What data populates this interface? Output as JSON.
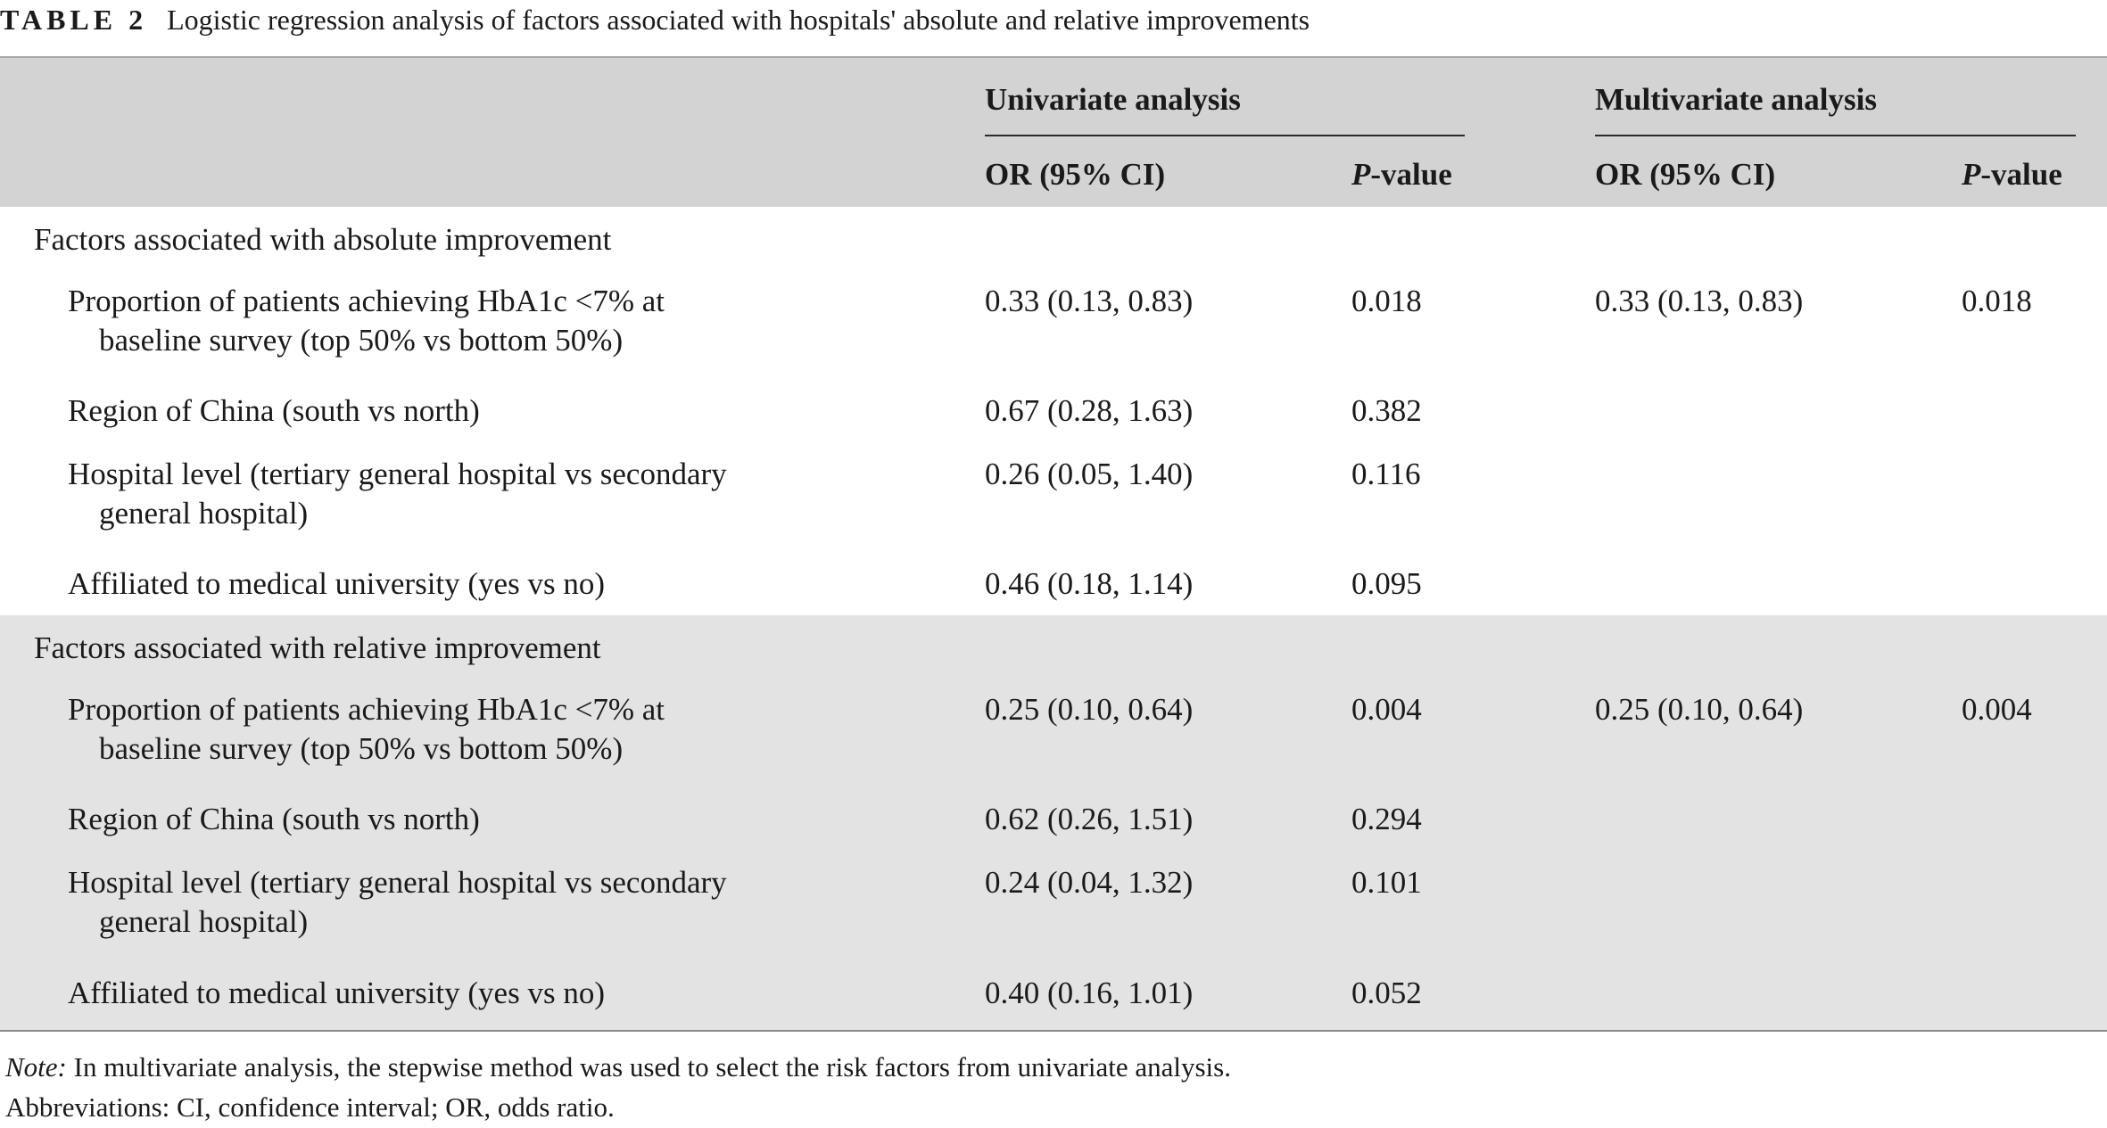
{
  "caption": {
    "label": "TABLE 2",
    "title": "Logistic regression analysis of factors associated with hospitals' absolute and relative improvements"
  },
  "headers": {
    "univariate": "Univariate analysis",
    "multivariate": "Multivariate analysis",
    "or_ci": "OR (95% CI)",
    "p_italic": "P",
    "p_suffix": "-value"
  },
  "sections": [
    {
      "title": "Factors associated with absolute improvement",
      "rows": [
        {
          "line1": "Proportion of patients achieving HbA1c <7% at",
          "line2": "baseline survey (top 50% vs bottom 50%)",
          "uni_or": "0.33 (0.13, 0.83)",
          "uni_p": "0.018",
          "multi_or": "0.33 (0.13, 0.83)",
          "multi_p": "0.018"
        },
        {
          "line1": "Region of China (south vs north)",
          "line2": "",
          "uni_or": "0.67 (0.28, 1.63)",
          "uni_p": "0.382",
          "multi_or": "",
          "multi_p": ""
        },
        {
          "line1": "Hospital level (tertiary general hospital vs secondary",
          "line2": "general hospital)",
          "uni_or": "0.26 (0.05, 1.40)",
          "uni_p": "0.116",
          "multi_or": "",
          "multi_p": ""
        },
        {
          "line1": "Affiliated to medical university (yes vs no)",
          "line2": "",
          "uni_or": "0.46 (0.18, 1.14)",
          "uni_p": "0.095",
          "multi_or": "",
          "multi_p": ""
        }
      ]
    },
    {
      "title": "Factors associated with relative improvement",
      "rows": [
        {
          "line1": "Proportion of patients achieving HbA1c <7% at",
          "line2": "baseline survey (top 50% vs bottom 50%)",
          "uni_or": "0.25 (0.10, 0.64)",
          "uni_p": "0.004",
          "multi_or": "0.25 (0.10, 0.64)",
          "multi_p": "0.004"
        },
        {
          "line1": "Region of China (south vs north)",
          "line2": "",
          "uni_or": "0.62 (0.26, 1.51)",
          "uni_p": "0.294",
          "multi_or": "",
          "multi_p": ""
        },
        {
          "line1": "Hospital level (tertiary general hospital vs secondary",
          "line2": "general hospital)",
          "uni_or": "0.24 (0.04, 1.32)",
          "uni_p": "0.101",
          "multi_or": "",
          "multi_p": ""
        },
        {
          "line1": "Affiliated to medical university (yes vs no)",
          "line2": "",
          "uni_or": "0.40 (0.16, 1.01)",
          "uni_p": "0.052",
          "multi_or": "",
          "multi_p": ""
        }
      ]
    }
  ],
  "footnotes": {
    "note_label": "Note:",
    "note_text": " In multivariate analysis, the stepwise method was used to select the risk factors from univariate analysis.",
    "abbreviations": "Abbreviations: CI, confidence interval; OR, odds ratio."
  }
}
